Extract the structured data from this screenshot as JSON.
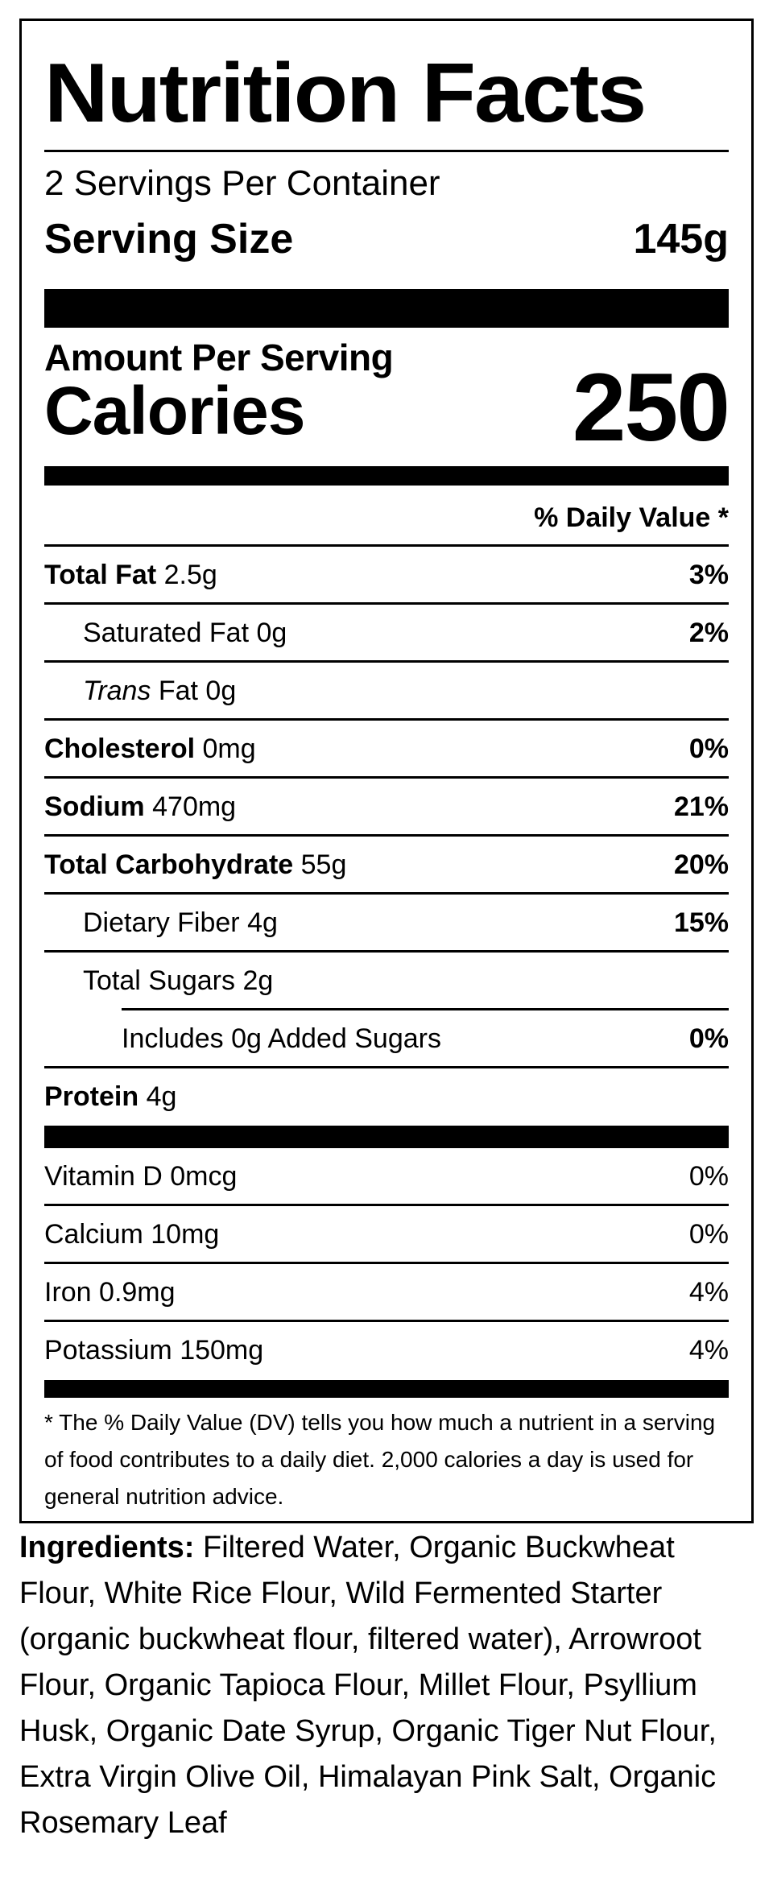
{
  "title": "Nutrition Facts",
  "servings_per_container": "2 Servings Per Container",
  "serving_size": {
    "label": "Serving Size",
    "value": "145g"
  },
  "amount_per_serving": "Amount Per Serving",
  "calories": {
    "label": "Calories",
    "value": "250"
  },
  "daily_value_header": "% Daily Value *",
  "nutrients": [
    {
      "name": "Total Fat",
      "amount": "2.5g",
      "dv": "3%"
    },
    {
      "name": "Saturated Fat",
      "amount": "0g",
      "dv": "2%"
    },
    {
      "name_italic": "Trans",
      "name": "Fat",
      "amount": "0g",
      "dv": ""
    },
    {
      "name": "Cholesterol",
      "amount": "0mg",
      "dv": "0%"
    },
    {
      "name": "Sodium",
      "amount": "470mg",
      "dv": "21%"
    },
    {
      "name": "Total Carbohydrate",
      "amount": "55g",
      "dv": "20%"
    },
    {
      "name": "Dietary Fiber",
      "amount": "4g",
      "dv": "15%"
    },
    {
      "name": "Total Sugars",
      "amount": "2g",
      "dv": ""
    },
    {
      "name": "Includes 0g Added Sugars",
      "amount": "",
      "dv": "0%"
    },
    {
      "name": "Protein",
      "amount": "4g",
      "dv": ""
    }
  ],
  "vitamins": [
    {
      "name": "Vitamin D",
      "amount": "0mcg",
      "dv": "0%"
    },
    {
      "name": "Calcium",
      "amount": "10mg",
      "dv": "0%"
    },
    {
      "name": "Iron",
      "amount": "0.9mg",
      "dv": "4%"
    },
    {
      "name": "Potassium",
      "amount": "150mg",
      "dv": "4%"
    }
  ],
  "footnote": "* The % Daily Value (DV) tells you how much a nutrient in a serving of food contributes to a daily diet. 2,000 calories a day is used for general nutrition advice.",
  "ingredients": {
    "label": "Ingredients:",
    "text": "Filtered Water, Organic Buckwheat Flour, White Rice Flour, Wild Fermented Starter (organic buckwheat flour, filtered water), Arrowroot Flour, Organic Tapioca Flour, Millet Flour, Psyllium Husk, Organic Date Syrup, Organic Tiger Nut Flour, Extra Virgin Olive Oil, Himalayan Pink Salt, Organic Rosemary Leaf"
  }
}
